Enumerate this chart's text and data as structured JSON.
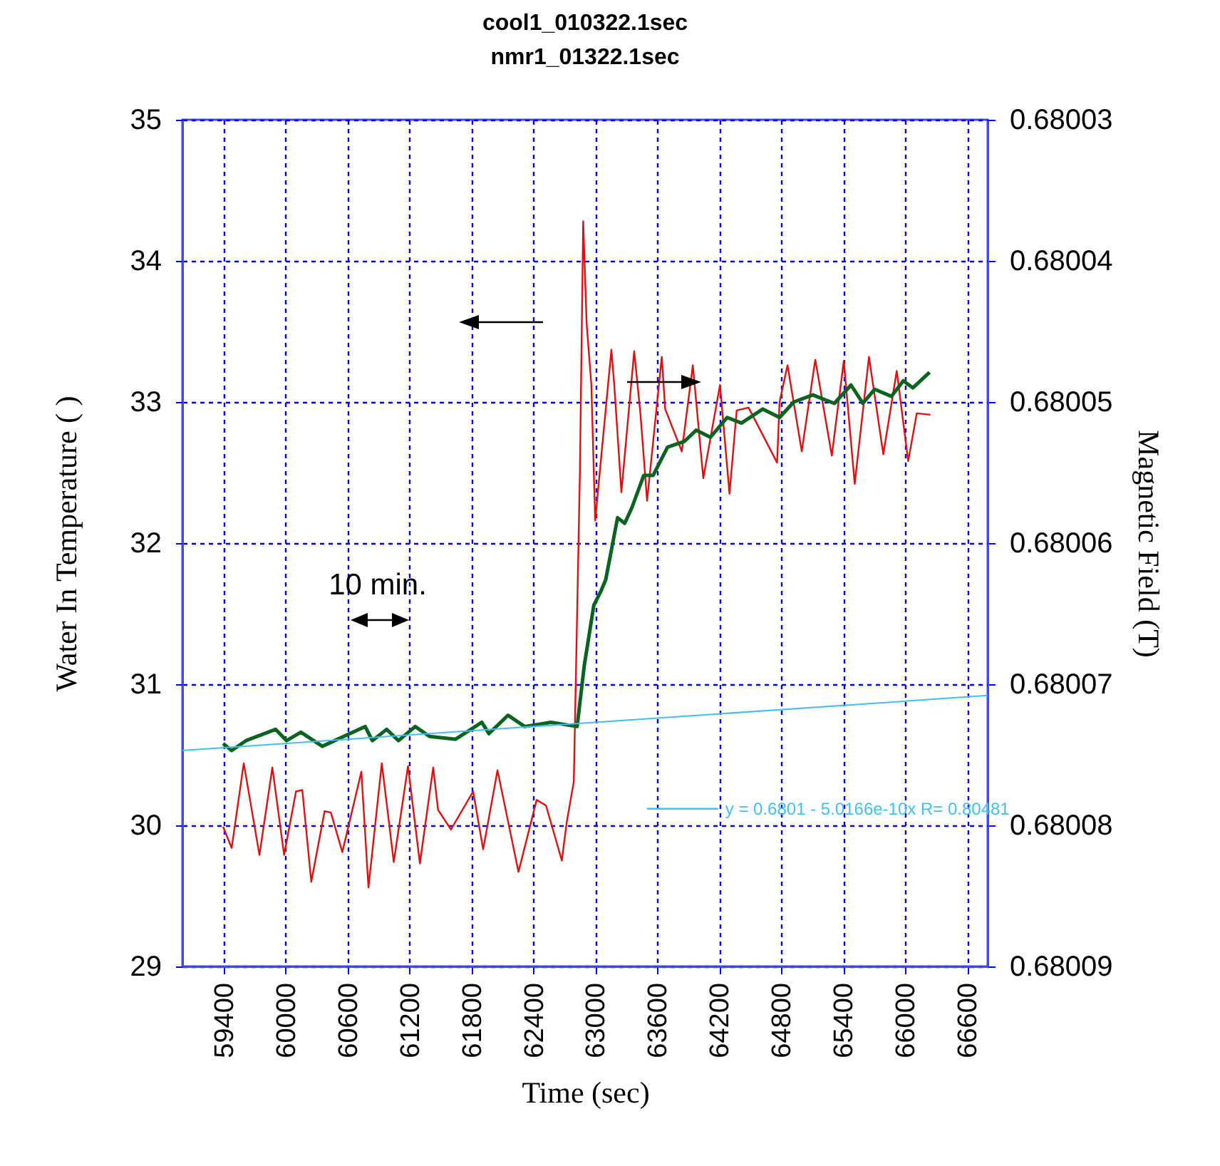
{
  "chart_data": {
    "type": "line",
    "title": "cool1_010322.1sec",
    "subtitle": "nmr1_01322.1sec",
    "xlabel": "Time (sec)",
    "ylabel": "Water In Temperature (   )",
    "y2label": "Magnetic Field (T)",
    "annotations": [
      "10 min."
    ],
    "xlim": [
      59000,
      66800
    ],
    "xticks": [
      59400,
      60000,
      60600,
      61200,
      61800,
      62400,
      63000,
      63600,
      64200,
      64800,
      65400,
      66000,
      66600
    ],
    "ylim": [
      29,
      35
    ],
    "yticks": [
      29,
      30,
      31,
      32,
      33,
      34,
      35
    ],
    "y2lim": [
      0.68009,
      0.68003
    ],
    "y2ticks": [
      0.68003,
      0.68004,
      0.68005,
      0.68006,
      0.68007,
      0.68008,
      0.68009
    ],
    "grid": true,
    "legend": "bottom right",
    "series": [
      {
        "color": "#e01010",
        "x": [
          59394,
          59477,
          59594,
          59746,
          59871,
          59985,
          60100,
          60161,
          60248,
          60377,
          60438,
          60549,
          60594,
          60733,
          60802,
          60931,
          61047,
          61185,
          61300,
          61429,
          61476,
          61601,
          61816,
          61913,
          62052,
          62255,
          62431,
          62522,
          62675,
          62722,
          62791,
          62850,
          62882,
          62915,
          62961,
          62998,
          63155,
          63183,
          63252,
          63376,
          63436,
          63501,
          63643,
          63676,
          63837,
          63944,
          64045,
          64207,
          64299,
          64369,
          64484,
          64760,
          64784,
          64861,
          64999,
          65130,
          65290,
          65406,
          65512,
          65650,
          65789,
          65919,
          66030,
          66113,
          66245
        ],
        "values": [
          29.99,
          29.84,
          30.44,
          29.79,
          30.41,
          29.79,
          30.24,
          30.25,
          29.6,
          30.1,
          30.09,
          29.81,
          29.95,
          30.38,
          29.56,
          30.44,
          29.74,
          30.42,
          29.73,
          30.41,
          30.11,
          29.97,
          30.24,
          29.83,
          30.39,
          29.67,
          30.18,
          30.14,
          29.75,
          30.02,
          30.31,
          32.5,
          34.28,
          33.56,
          33.12,
          32.16,
          33.37,
          33.12,
          32.36,
          33.36,
          32.92,
          32.3,
          33.32,
          32.95,
          32.65,
          33.26,
          32.46,
          33.12,
          32.35,
          32.94,
          32.96,
          32.57,
          33.0,
          33.26,
          32.65,
          33.3,
          32.62,
          33.29,
          32.42,
          33.32,
          32.63,
          33.22,
          32.58,
          32.92,
          32.91
        ]
      },
      {
        "color": "#0a6420",
        "axis": "y2",
        "x": [
          59394,
          59477,
          59616,
          59902,
          60009,
          60147,
          60355,
          60770,
          60839,
          60978,
          61093,
          61255,
          61393,
          61646,
          61900,
          61969,
          62154,
          62315,
          62569,
          62823,
          62892,
          62985,
          63054,
          63100,
          63215,
          63284,
          63353,
          63469,
          63560,
          63699,
          63861,
          63976,
          64114,
          64276,
          64415,
          64622,
          64784,
          64922,
          65106,
          65314,
          65476,
          65591,
          65706,
          65868,
          65983,
          66076,
          66237
        ],
        "values": [
          0.6800742,
          0.6800747,
          0.680074,
          0.6800732,
          0.680074,
          0.6800734,
          0.6800744,
          0.680073,
          0.680074,
          0.6800732,
          0.680074,
          0.680073,
          0.6800737,
          0.6800739,
          0.6800727,
          0.6800735,
          0.6800722,
          0.680073,
          0.6800727,
          0.680073,
          0.6800687,
          0.6800644,
          0.6800634,
          0.6800626,
          0.6800582,
          0.6800586,
          0.6800575,
          0.6800552,
          0.6800552,
          0.6800532,
          0.6800528,
          0.680052,
          0.6800525,
          0.6800511,
          0.6800515,
          0.6800505,
          0.6800511,
          0.68005,
          0.6800495,
          0.6800501,
          0.6800488,
          0.6800501,
          0.6800491,
          0.6800496,
          0.6800485,
          0.680049,
          0.6800479
        ]
      },
      {
        "name": "y = 0.6801 - 5.0166e-10x   R= 0.80481",
        "type": "line",
        "color": "#40bff0",
        "axis": "y2",
        "x": [
          59000,
          66800
        ],
        "values": [
          0.6800747,
          0.6800708
        ]
      }
    ]
  }
}
